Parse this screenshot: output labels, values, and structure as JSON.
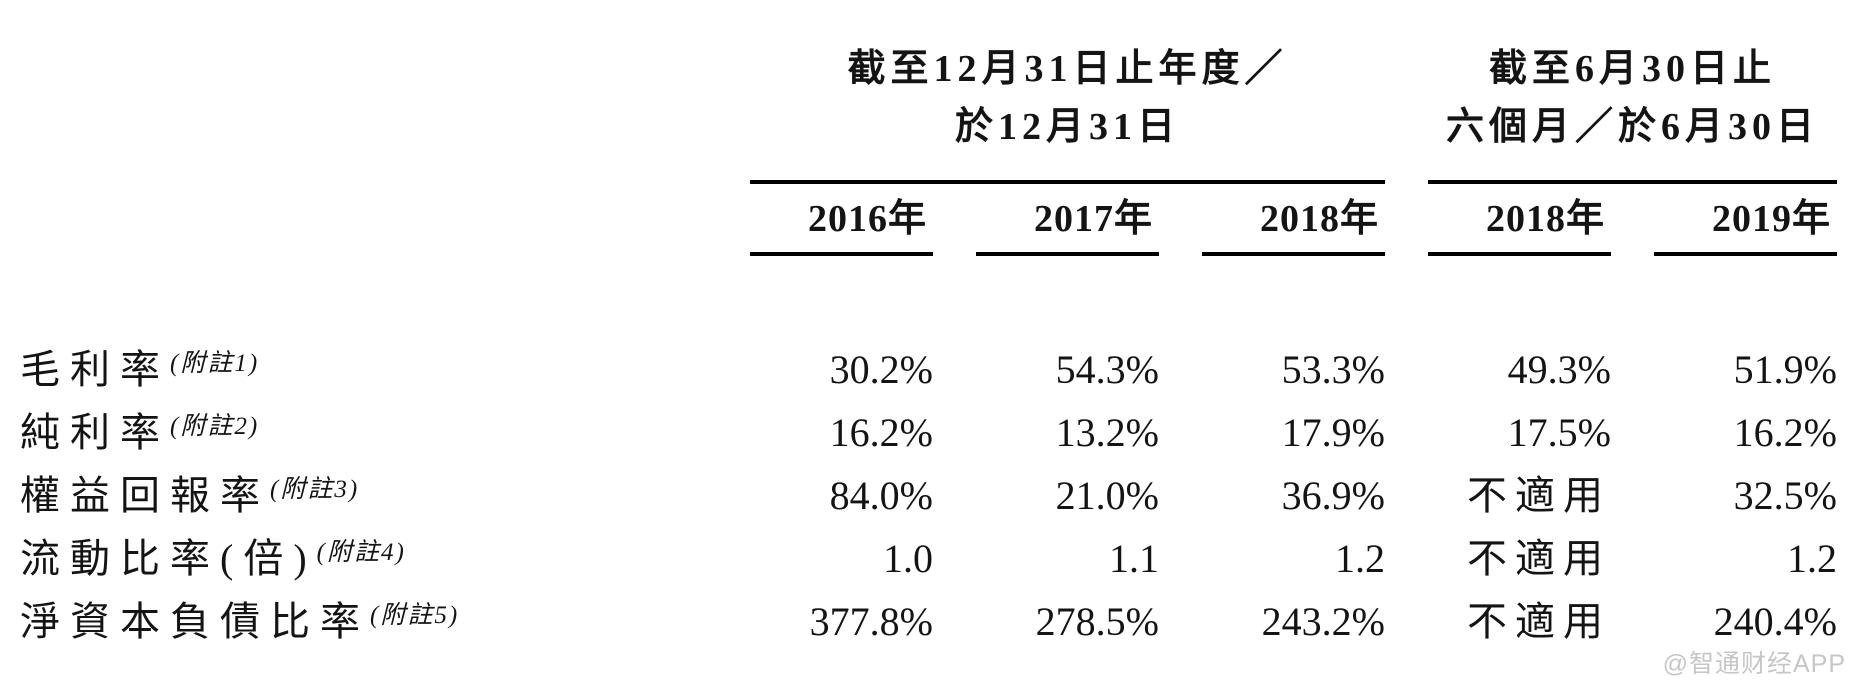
{
  "table": {
    "col_groups": [
      {
        "line1": "截至12月31日止年度／",
        "line2": "於12月31日",
        "span": 3
      },
      {
        "line1": "截至6月30日止",
        "line2": "六個月／於6月30日",
        "span": 2
      }
    ],
    "columns": [
      "2016年",
      "2017年",
      "2018年",
      "2018年",
      "2019年"
    ],
    "rows": [
      {
        "label": "毛利率",
        "note": "(附註1)",
        "values": [
          "30.2%",
          "54.3%",
          "53.3%",
          "49.3%",
          "51.9%"
        ]
      },
      {
        "label": "純利率",
        "note": "(附註2)",
        "values": [
          "16.2%",
          "13.2%",
          "17.9%",
          "17.5%",
          "16.2%"
        ]
      },
      {
        "label": "權益回報率",
        "note": "(附註3)",
        "values": [
          "84.0%",
          "21.0%",
          "36.9%",
          "不適用",
          "32.5%"
        ]
      },
      {
        "label": "流動比率(倍)",
        "note": "(附註4)",
        "values": [
          "1.0",
          "1.1",
          "1.2",
          "不適用",
          "1.2"
        ]
      },
      {
        "label": "淨資本負債比率",
        "note": "(附註5)",
        "values": [
          "377.8%",
          "278.5%",
          "243.2%",
          "不適用",
          "240.4%"
        ]
      }
    ]
  },
  "watermark": "@智通财经APP",
  "colors": {
    "text": "#141414",
    "rule": "#000000",
    "watermark": "#c6c6c6"
  }
}
